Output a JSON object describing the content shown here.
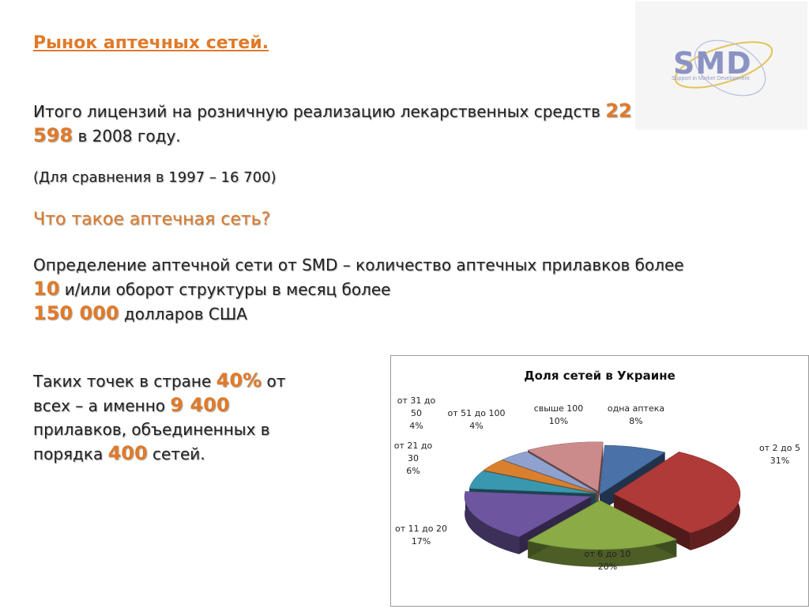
{
  "logo": {
    "text": "SMD",
    "tagline": "Support in Market Development"
  },
  "title": "Рынок аптечных сетей.",
  "licenses": {
    "text_before": "Итого лицензий на розничную реализацию  лекарственных средств ",
    "value_a": "22",
    "value_b": "598",
    "text_after": " в 2008 году."
  },
  "comparison": "(Для сравнения в 1997 – 16 700)",
  "question": "Что такое аптечная сеть?",
  "definition": {
    "text_1": "Определение аптечной сети от SMD – количество аптечных прилавков более ",
    "value_count": "10",
    "text_2": " и/или оборот структуры в месяц более ",
    "value_turnover": "150 000",
    "text_3": " долларов США"
  },
  "points": {
    "text_1": "Таких точек в стране ",
    "value_pct": "40%",
    "text_2": " от всех – а именно ",
    "value_count": "9 400",
    "text_3": " прилавков, объединенных в порядка ",
    "value_nets": "400",
    "text_4": " сетей."
  },
  "chart_data": {
    "type": "pie",
    "title": "Доля сетей в Украине",
    "categories": [
      "одна аптека",
      "от 2 до 5",
      "от 6 до 10",
      "от 11 до 20",
      "от 21 до 30",
      "от 31 до 50",
      "от 51 до 100",
      "свыше 100"
    ],
    "label_lines": [
      [
        "одна аптека",
        "8%"
      ],
      [
        "от 2 до 5",
        "31%"
      ],
      [
        "от 6 до 10",
        "20%"
      ],
      [
        "от 11 до 20",
        "17%"
      ],
      [
        "от 21 до",
        "30",
        "6%"
      ],
      [
        "от 31 до",
        "50",
        "4%"
      ],
      [
        "от 51 до 100",
        "4%"
      ],
      [
        "свыше 100",
        "10%"
      ]
    ],
    "values": [
      8,
      31,
      20,
      17,
      6,
      4,
      4,
      10
    ],
    "colors": [
      "#4a72a8",
      "#b03a38",
      "#8aab45",
      "#6d55a0",
      "#3a97b0",
      "#d9802e",
      "#8fa2cf",
      "#cc8b8b"
    ],
    "legend": "none",
    "chart_style": "3d-exploded"
  }
}
